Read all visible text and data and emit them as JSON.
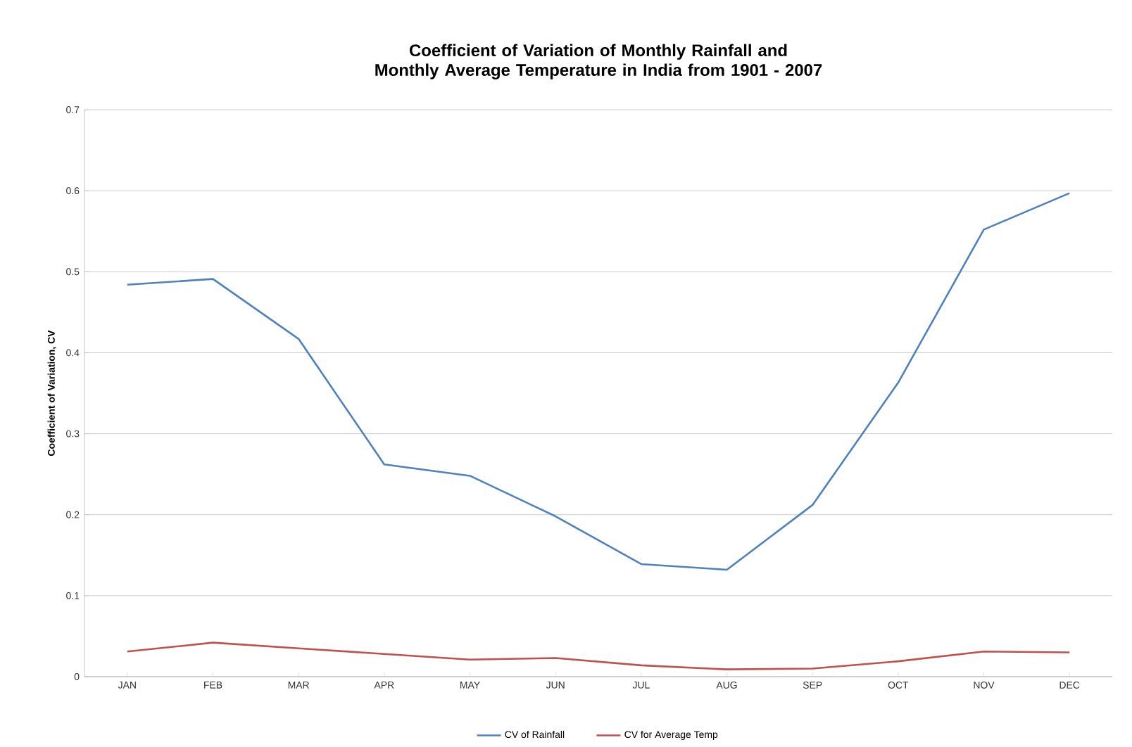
{
  "chart_data": {
    "type": "line",
    "title": "Coefficient of Variation of Monthly Rainfall and Monthly Average Temperature in India from 1901 - 2007",
    "ylabel": "Coefficient of Variation, CV",
    "categories": [
      "JAN",
      "FEB",
      "MAR",
      "APR",
      "MAY",
      "JUN",
      "JUL",
      "AUG",
      "SEP",
      "OCT",
      "NOV",
      "DEC"
    ],
    "series": [
      {
        "name": "CV of Rainfall",
        "color": "#4f81bd",
        "values": [
          0.484,
          0.491,
          0.417,
          0.262,
          0.248,
          0.198,
          0.139,
          0.132,
          0.212,
          0.363,
          0.552,
          0.597
        ]
      },
      {
        "name": "CV for Average Temp",
        "color": "#c0504d",
        "values": [
          0.031,
          0.042,
          0.035,
          0.028,
          0.021,
          0.023,
          0.014,
          0.009,
          0.01,
          0.019,
          0.031,
          0.03
        ]
      }
    ],
    "ylim": [
      0,
      0.7
    ],
    "yticks": [
      0,
      0.1,
      0.2,
      0.3,
      0.4,
      0.5,
      0.6,
      0.7
    ],
    "grid": "y",
    "legend": "bottom"
  }
}
